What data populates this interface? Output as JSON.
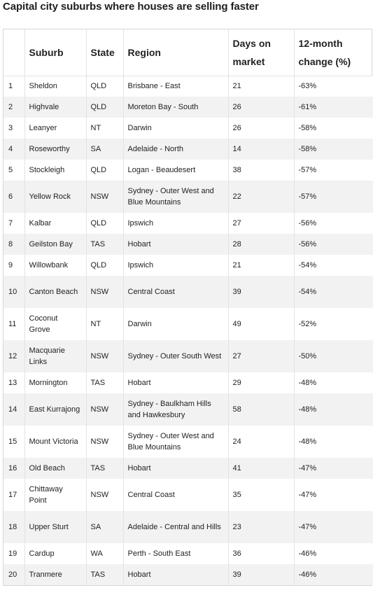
{
  "title": "Capital city suburbs where houses are selling faster",
  "headers": {
    "rank": "",
    "suburb": "Suburb",
    "state": "State",
    "region": "Region",
    "days": "Days on market",
    "change": "12-month change (%)"
  },
  "rows": [
    {
      "rank": "1",
      "suburb": "Sheldon",
      "state": "QLD",
      "region": "Brisbane - East",
      "days": "21",
      "change": "-63%"
    },
    {
      "rank": "2",
      "suburb": "Highvale",
      "state": "QLD",
      "region": "Moreton Bay - South",
      "days": "26",
      "change": "-61%"
    },
    {
      "rank": "3",
      "suburb": "Leanyer",
      "state": "NT",
      "region": "Darwin",
      "days": "26",
      "change": "-58%"
    },
    {
      "rank": "4",
      "suburb": "Roseworthy",
      "state": "SA",
      "region": "Adelaide - North",
      "days": "14",
      "change": "-58%"
    },
    {
      "rank": "5",
      "suburb": "Stockleigh",
      "state": "QLD",
      "region": "Logan - Beaudesert",
      "days": "38",
      "change": "-57%"
    },
    {
      "rank": "6",
      "suburb": "Yellow Rock",
      "state": "NSW",
      "region": "Sydney - Outer West and Blue Mountains",
      "days": "22",
      "change": "-57%"
    },
    {
      "rank": "7",
      "suburb": "Kalbar",
      "state": "QLD",
      "region": "Ipswich",
      "days": "27",
      "change": "-56%"
    },
    {
      "rank": "8",
      "suburb": "Geilston Bay",
      "state": "TAS",
      "region": "Hobart",
      "days": "28",
      "change": "-56%"
    },
    {
      "rank": "9",
      "suburb": "Willowbank",
      "state": "QLD",
      "region": "Ipswich",
      "days": "21",
      "change": "-54%"
    },
    {
      "rank": "10",
      "suburb": "Canton Beach",
      "state": "NSW",
      "region": "Central Coast",
      "days": "39",
      "change": "-54%"
    },
    {
      "rank": "11",
      "suburb": "Coconut Grove",
      "state": "NT",
      "region": "Darwin",
      "days": "49",
      "change": "-52%"
    },
    {
      "rank": "12",
      "suburb": "Macquarie Links",
      "state": "NSW",
      "region": "Sydney - Outer South West",
      "days": "27",
      "change": "-50%"
    },
    {
      "rank": "13",
      "suburb": "Mornington",
      "state": "TAS",
      "region": "Hobart",
      "days": "29",
      "change": "-48%"
    },
    {
      "rank": "14",
      "suburb": "East Kurrajong",
      "state": "NSW",
      "region": "Sydney - Baulkham Hills and Hawkesbury",
      "days": "58",
      "change": "-48%"
    },
    {
      "rank": "15",
      "suburb": "Mount Victoria",
      "state": "NSW",
      "region": "Sydney - Outer West and Blue Mountains",
      "days": "24",
      "change": "-48%"
    },
    {
      "rank": "16",
      "suburb": "Old Beach",
      "state": "TAS",
      "region": "Hobart",
      "days": "41",
      "change": "-47%"
    },
    {
      "rank": "17",
      "suburb": "Chittaway Point",
      "state": "NSW",
      "region": "Central Coast",
      "days": "35",
      "change": "-47%"
    },
    {
      "rank": "18",
      "suburb": "Upper Sturt",
      "state": "SA",
      "region": "Adelaide - Central and Hills",
      "days": "23",
      "change": "-47%"
    },
    {
      "rank": "19",
      "suburb": "Cardup",
      "state": "WA",
      "region": "Perth - South East",
      "days": "36",
      "change": "-46%"
    },
    {
      "rank": "20",
      "suburb": "Tranmere",
      "state": "TAS",
      "region": "Hobart",
      "days": "39",
      "change": "-46%"
    }
  ]
}
